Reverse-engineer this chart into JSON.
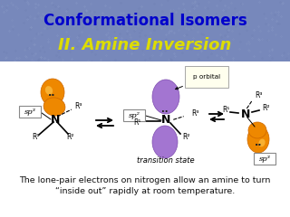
{
  "title_line1": "Conformational Isomers",
  "title_line2": "II. Amine Inversion",
  "title_color1": "#0000cc",
  "title_color2": "#dddd00",
  "header_bg": "#7788bb",
  "body_bg": "#e8eaf0",
  "footer_text1": "The lone-pair electrons on nitrogen allow an amine to turn",
  "footer_text2": "“inside out” rapidly at room temperature.",
  "footer_fontsize": 6.8,
  "lone_pair_color": "#ee8800",
  "transition_purple": "#9966cc",
  "sp3_label": "sp³",
  "sp2_label": "sp²",
  "p_orbital_label": "p orbital",
  "transition_label": "transition state",
  "white_body_bg": "#ffffff"
}
